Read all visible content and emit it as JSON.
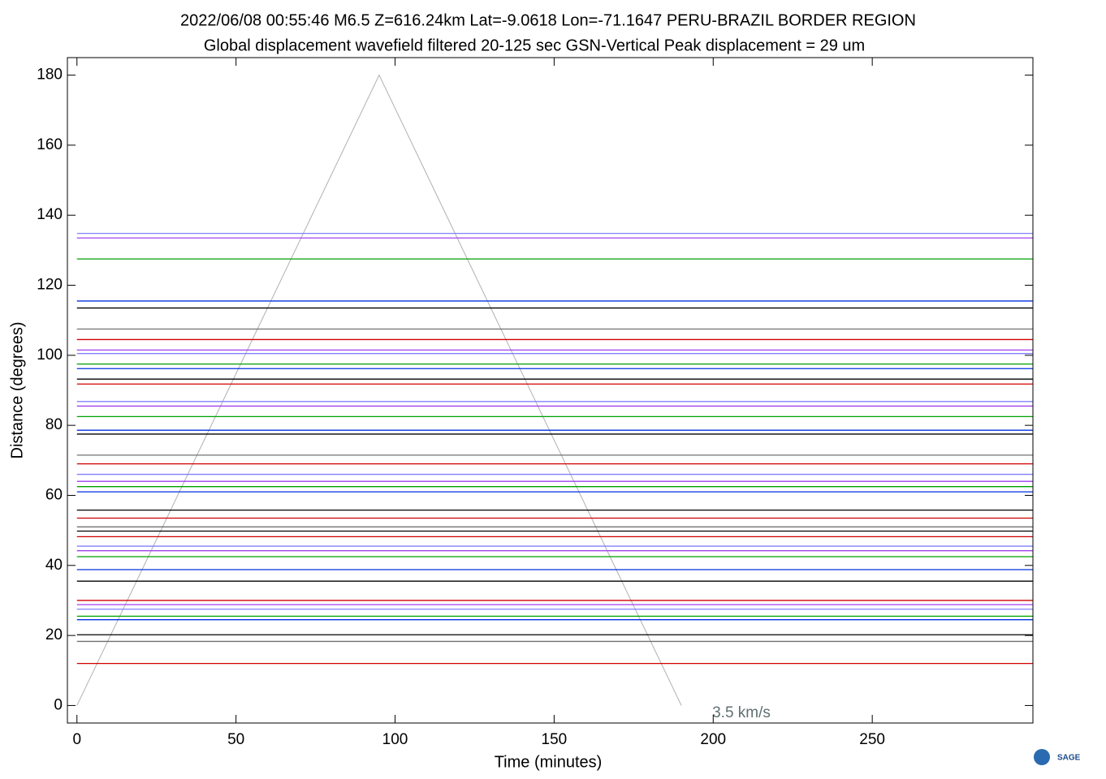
{
  "chart_data": {
    "type": "record-section",
    "title": "2022/06/08  00:55:46  M6.5  Z=616.24km  Lat=-9.0618 Lon=-71.1647  PERU-BRAZIL BORDER REGION",
    "subtitle": "Global displacement wavefield     filtered 20-125 sec    GSN-Vertical    Peak displacement =  29 um",
    "x_label": "Time (minutes)",
    "y_label": "Distance (degrees)",
    "xlim": [
      -3,
      300.5
    ],
    "ylim": [
      -5,
      185
    ],
    "xticks": [
      0,
      50,
      100,
      150,
      200,
      250
    ],
    "yticks": [
      0,
      20,
      40,
      60,
      80,
      100,
      120,
      140,
      160,
      180
    ],
    "traces": [
      {
        "distance": 134.8,
        "color": "#8080ff"
      },
      {
        "distance": 133.5,
        "color": "#a040f0"
      },
      {
        "distance": 127.5,
        "color": "#00a000"
      },
      {
        "distance": 115.5,
        "color": "#0030e0"
      },
      {
        "distance": 113.5,
        "color": "#000000"
      },
      {
        "distance": 107.5,
        "color": "#707070"
      },
      {
        "distance": 104.5,
        "color": "#d00000"
      },
      {
        "distance": 101.5,
        "color": "#a040f0"
      },
      {
        "distance": 100.5,
        "color": "#8080ff"
      },
      {
        "distance": 97.5,
        "color": "#00a000"
      },
      {
        "distance": 96.2,
        "color": "#0030e0"
      },
      {
        "distance": 93.2,
        "color": "#000000"
      },
      {
        "distance": 91.8,
        "color": "#d00000"
      },
      {
        "distance": 86.8,
        "color": "#8080ff"
      },
      {
        "distance": 85.5,
        "color": "#a040f0"
      },
      {
        "distance": 82.5,
        "color": "#00a000"
      },
      {
        "distance": 78.6,
        "color": "#0030e0"
      },
      {
        "distance": 77.5,
        "color": "#000000"
      },
      {
        "distance": 71.5,
        "color": "#707070"
      },
      {
        "distance": 69.0,
        "color": "#d00000"
      },
      {
        "distance": 66.0,
        "color": "#8080ff"
      },
      {
        "distance": 64.0,
        "color": "#a040f0"
      },
      {
        "distance": 62.5,
        "color": "#00a000"
      },
      {
        "distance": 61.0,
        "color": "#0030e0"
      },
      {
        "distance": 55.8,
        "color": "#000000"
      },
      {
        "distance": 53.5,
        "color": "#d00000"
      },
      {
        "distance": 51.0,
        "color": "#707070"
      },
      {
        "distance": 49.8,
        "color": "#000000"
      },
      {
        "distance": 48.2,
        "color": "#d00000"
      },
      {
        "distance": 45.5,
        "color": "#8080ff"
      },
      {
        "distance": 44.2,
        "color": "#a040f0"
      },
      {
        "distance": 42.5,
        "color": "#00a000"
      },
      {
        "distance": 38.8,
        "color": "#0030e0"
      },
      {
        "distance": 35.5,
        "color": "#000000"
      },
      {
        "distance": 30.0,
        "color": "#d00000"
      },
      {
        "distance": 28.8,
        "color": "#a040f0"
      },
      {
        "distance": 27.5,
        "color": "#8080ff"
      },
      {
        "distance": 25.5,
        "color": "#00a000"
      },
      {
        "distance": 24.5,
        "color": "#0030e0"
      },
      {
        "distance": 20.2,
        "color": "#000000"
      },
      {
        "distance": 18.3,
        "color": "#707070"
      },
      {
        "distance": 12.0,
        "color": "#d00000"
      }
    ],
    "reference_line": {
      "x": [
        0,
        95,
        190
      ],
      "values": [
        0,
        180,
        0
      ],
      "color": "#b0b0b0",
      "label": "3.5 km/s",
      "label_color": "#607070"
    },
    "logo": "SAGE"
  }
}
